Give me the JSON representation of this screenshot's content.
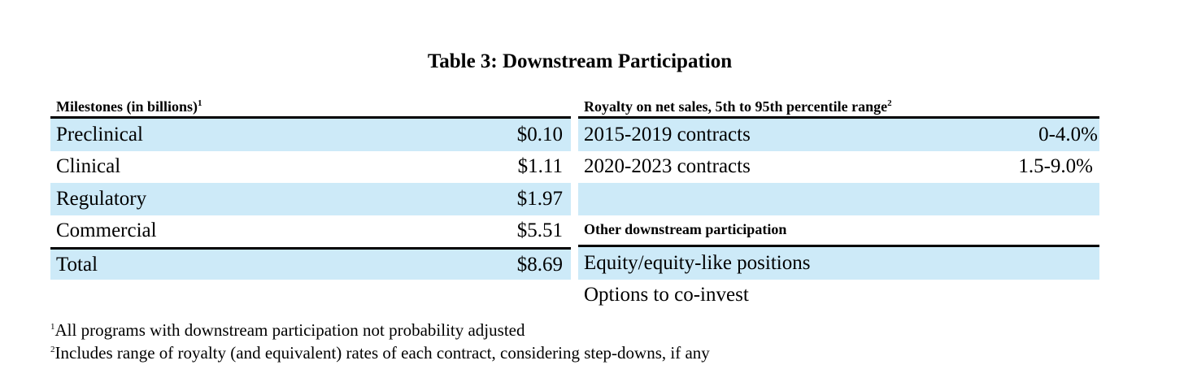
{
  "title": "Table 3: Downstream Participation",
  "milestones": {
    "header": "Milestones (in billions)",
    "header_sup": "1",
    "rows": [
      {
        "label": "Preclinical",
        "value": "$0.10"
      },
      {
        "label": "Clinical",
        "value": "$1.11"
      },
      {
        "label": "Regulatory",
        "value": "$1.97"
      },
      {
        "label": "Commercial",
        "value": "$5.51"
      }
    ],
    "total": {
      "label": "Total",
      "value": "$8.69"
    }
  },
  "royalty": {
    "header": "Royalty on net sales, 5th to 95th percentile range",
    "header_sup": "2",
    "rows": [
      {
        "label": "2015-2019 contracts",
        "value": "0-4.0%"
      },
      {
        "label": "2020-2023 contracts",
        "value": "1.5-9.0%"
      }
    ]
  },
  "other": {
    "header": "Other downstream participation",
    "items": [
      "Equity/equity-like positions",
      "Options to co-invest"
    ]
  },
  "footnotes": [
    {
      "sup": "1",
      "text": "All programs with downstream participation not probability adjusted"
    },
    {
      "sup": "2",
      "text": "Includes range of royalty (and equivalent) rates of each contract, considering step-downs, if any"
    }
  ],
  "colors": {
    "row_shade": "#cdeaf8",
    "rule": "#000000"
  }
}
